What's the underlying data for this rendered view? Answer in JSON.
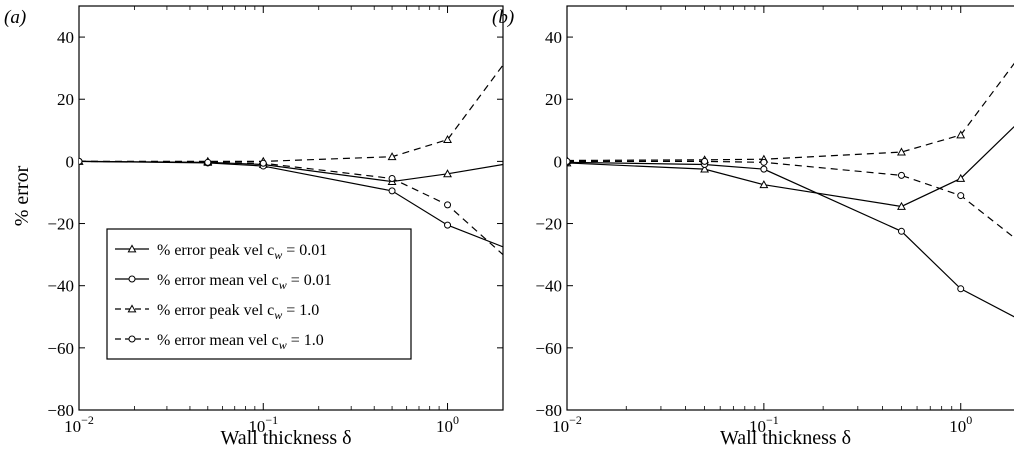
{
  "chart_data": [
    {
      "type": "line",
      "panel_label": "(a)",
      "xscale": "log",
      "xlim": [
        0.01,
        2
      ],
      "ylim": [
        -80,
        50
      ],
      "xticks": [
        {
          "value": 0.01,
          "base": "10",
          "exp": "−2"
        },
        {
          "value": 0.1,
          "base": "10",
          "exp": "−1"
        },
        {
          "value": 1,
          "base": "10",
          "exp": "0"
        }
      ],
      "yticks": [
        {
          "value": -80,
          "label": "−80"
        },
        {
          "value": -60,
          "label": "−60"
        },
        {
          "value": -40,
          "label": "−40"
        },
        {
          "value": -20,
          "label": "−20"
        },
        {
          "value": 0,
          "label": "0"
        },
        {
          "value": 20,
          "label": "20"
        },
        {
          "value": 40,
          "label": "40"
        }
      ],
      "xlabel": "Wall thickness δ",
      "ylabel": "% error",
      "grid": false,
      "legend": {
        "placement": "lower-left",
        "entries": [
          {
            "text": "% error peak vel c",
            "sub": "w",
            "suffix": " = 0.01"
          },
          {
            "text": "% error mean vel c",
            "sub": "w",
            "suffix": " = 0.01"
          },
          {
            "text": "% error peak vel c",
            "sub": "w",
            "suffix": " = 1.0"
          },
          {
            "text": "% error mean vel c",
            "sub": "w",
            "suffix": " = 1.0"
          }
        ]
      },
      "series": [
        {
          "marker": "triangle",
          "linestyle": "solid",
          "x": [
            0.01,
            0.05,
            0.1,
            0.5,
            1,
            2
          ],
          "y": [
            0,
            -0.3,
            -1,
            -6.5,
            -4,
            -1
          ]
        },
        {
          "marker": "circle",
          "linestyle": "solid",
          "x": [
            0.01,
            0.05,
            0.1,
            0.5,
            1,
            2
          ],
          "y": [
            0,
            -0.5,
            -1.5,
            -9.5,
            -20.5,
            -27.5
          ]
        },
        {
          "marker": "triangle",
          "linestyle": "dashed",
          "x": [
            0.01,
            0.05,
            0.1,
            0.5,
            1,
            2
          ],
          "y": [
            0,
            0,
            0,
            1.5,
            7,
            31
          ]
        },
        {
          "marker": "circle",
          "linestyle": "dashed",
          "x": [
            0.01,
            0.05,
            0.1,
            0.5,
            1,
            2
          ],
          "y": [
            0,
            -0.3,
            -0.6,
            -5.5,
            -14,
            -30
          ]
        }
      ]
    },
    {
      "type": "line",
      "panel_label": "(b)",
      "xscale": "log",
      "xlim": [
        0.01,
        2
      ],
      "ylim": [
        -80,
        50
      ],
      "xticks": [
        {
          "value": 0.01,
          "base": "10",
          "exp": "−2"
        },
        {
          "value": 0.1,
          "base": "10",
          "exp": "−1"
        },
        {
          "value": 1,
          "base": "10",
          "exp": "0"
        }
      ],
      "yticks": [
        {
          "value": -80,
          "label": "−80"
        },
        {
          "value": -60,
          "label": "−60"
        },
        {
          "value": -40,
          "label": "−40"
        },
        {
          "value": -20,
          "label": "−20"
        },
        {
          "value": 0,
          "label": "0"
        },
        {
          "value": 20,
          "label": "20"
        },
        {
          "value": 40,
          "label": "40"
        }
      ],
      "xlabel": "Wall thickness δ",
      "ylabel": "",
      "grid": false,
      "series": [
        {
          "marker": "triangle",
          "linestyle": "solid",
          "x": [
            0.01,
            0.05,
            0.1,
            0.5,
            1,
            2
          ],
          "y": [
            -0.5,
            -2.5,
            -7.5,
            -14.5,
            -5.5,
            13
          ]
        },
        {
          "marker": "circle",
          "linestyle": "solid",
          "x": [
            0.01,
            0.05,
            0.1,
            0.5,
            1,
            2
          ],
          "y": [
            -0.3,
            -1,
            -2.5,
            -22.5,
            -41,
            -51
          ]
        },
        {
          "marker": "triangle",
          "linestyle": "dashed",
          "x": [
            0.01,
            0.05,
            0.1,
            0.5,
            1,
            2
          ],
          "y": [
            0.3,
            0.5,
            0.7,
            3,
            8.5,
            34
          ]
        },
        {
          "marker": "circle",
          "linestyle": "dashed",
          "x": [
            0.01,
            0.05,
            0.1,
            0.5,
            1,
            2
          ],
          "y": [
            0,
            0,
            -0.3,
            -4.5,
            -11,
            -26
          ]
        }
      ]
    }
  ]
}
